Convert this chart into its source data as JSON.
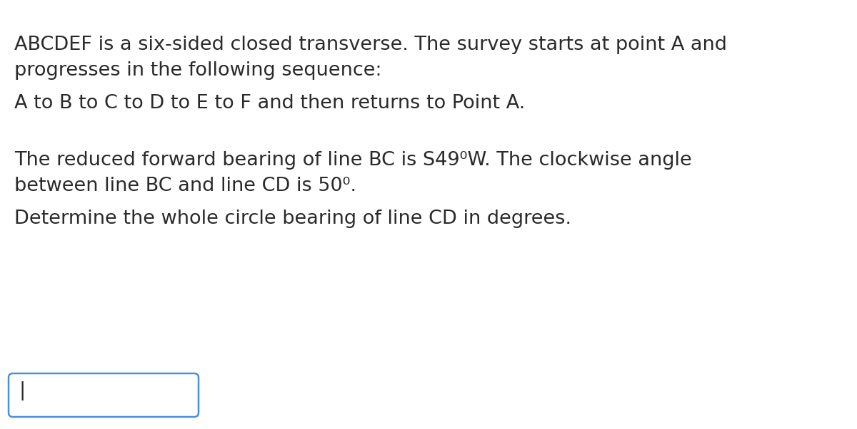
{
  "background_color": "#ffffff",
  "text_color": "#2a2a2a",
  "line1": "ABCDEF is a six-sided closed transverse. The survey starts at point A and",
  "line2": "progresses in the following sequence:",
  "line3": "A to B to C to D to E to F and then returns to Point A.",
  "line4": "The reduced forward bearing of line BC is S49⁰W. The clockwise angle",
  "line5": "between line BC and line CD is 50⁰.",
  "line6": "Determine the whole circle bearing of line CD in degrees.",
  "font_size_main": 19.5,
  "input_box_color": "#4a90d9",
  "cursor_char": "|"
}
